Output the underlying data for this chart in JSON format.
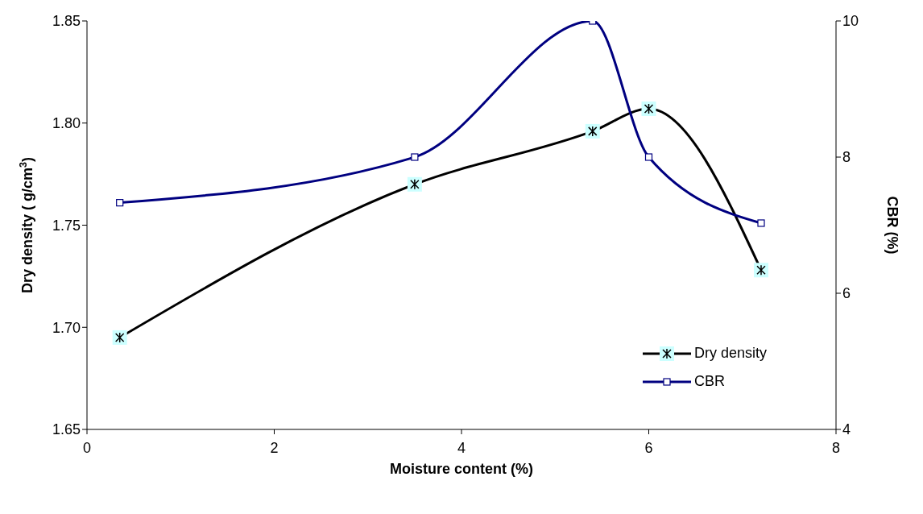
{
  "chart_data": {
    "type": "line",
    "xlabel": "Moisture content  (%)",
    "ylabel": "Dry density ( g/cm$^{3}$)",
    "y2label": "CBR (%)",
    "x": [
      0.35,
      3.5,
      5.4,
      6.0,
      7.2
    ],
    "series": [
      {
        "name": "Dry density",
        "color": "#000000",
        "values": [
          1.695,
          1.77,
          1.796,
          1.807,
          1.728
        ],
        "marker": "cross"
      },
      {
        "name": "CBR",
        "color": "#000080",
        "values": [
          7.33,
          8.0,
          10,
          8.0,
          7.03
        ],
        "axis": "y2",
        "marker": "square"
      }
    ],
    "xlim": [
      0,
      8
    ],
    "xticks": [
      0,
      2,
      4,
      6,
      8
    ],
    "ylim": [
      1.65,
      1.85
    ],
    "yticks": [
      {
        "value": 1.65,
        "label": "1.65"
      },
      {
        "value": 1.7,
        "label": "1.70"
      },
      {
        "value": 1.75,
        "label": "1.75"
      },
      {
        "value": 1.8,
        "label": "1.80"
      },
      {
        "value": 1.85,
        "label": "1.85"
      }
    ],
    "y2lim": [
      4,
      10
    ],
    "y2ticks": [
      4,
      6,
      8,
      10
    ],
    "grid": false,
    "legend": "bottom right"
  }
}
